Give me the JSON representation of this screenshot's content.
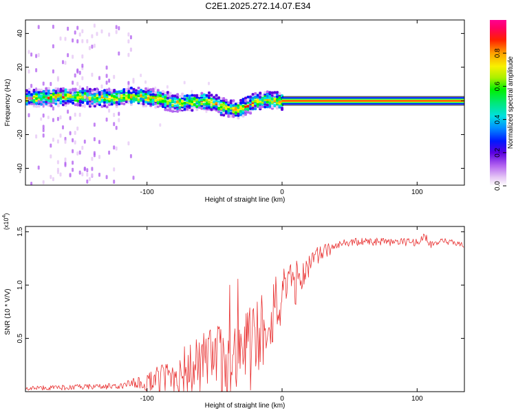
{
  "title": "C2E1.2025.272.14.07.E34",
  "chart_data": [
    {
      "type": "heatmap",
      "xlabel": "Height of straight line (km)",
      "ylabel": "Frequency (Hz)",
      "xlim": [
        -190,
        135
      ],
      "ylim": [
        -50,
        48
      ],
      "xticks": [
        -100,
        0,
        100
      ],
      "xtick_labels": [
        "-100",
        "0",
        "100"
      ],
      "yticks": [
        -40,
        -20,
        0,
        20,
        40
      ],
      "ytick_labels": [
        "-40",
        "-20",
        "0",
        "20",
        "40"
      ],
      "ridge": {
        "x": [
          -190,
          -160,
          -130,
          -110,
          -95,
          -80,
          -65,
          -55,
          -45,
          -35,
          -28,
          -20,
          -10,
          0,
          135
        ],
        "freq": [
          2,
          3,
          2,
          3,
          2,
          -1,
          0,
          0,
          -3,
          -5,
          -3,
          0,
          1,
          0,
          0
        ]
      },
      "constant_line": {
        "freq": 0,
        "from_x": 0,
        "to_x": 135
      }
    },
    {
      "type": "colorbar",
      "label": "Normalized spectral amplitude",
      "range": [
        0,
        1
      ],
      "ticks": [
        0.0,
        0.2,
        0.4,
        0.6,
        0.8
      ],
      "tick_labels": [
        "0.0",
        "0.2",
        "0.4",
        "0.6",
        "0.8"
      ]
    },
    {
      "type": "line",
      "xlabel": "Height of straight line (km)",
      "ylabel": "SNR (10 * V/V)",
      "multiplier_label": "(x10",
      "multiplier_exp": "4",
      "xlim": [
        -190,
        135
      ],
      "ylim": [
        0,
        1.55
      ],
      "xticks": [
        -100,
        0,
        100
      ],
      "xtick_labels": [
        "-100",
        "0",
        "100"
      ],
      "yticks": [
        0.5,
        1.0,
        1.5
      ],
      "ytick_labels": [
        "0.5",
        "1.0",
        "1.5"
      ],
      "series_color": "#e83030",
      "trend": {
        "x": [
          -190,
          -150,
          -120,
          -100,
          -85,
          -70,
          -55,
          -40,
          -30,
          -22,
          -15,
          -8,
          0,
          10,
          20,
          30,
          40,
          50,
          60,
          80,
          100,
          106,
          110,
          120,
          135
        ],
        "y": [
          0.03,
          0.04,
          0.05,
          0.08,
          0.12,
          0.18,
          0.22,
          0.25,
          0.3,
          0.4,
          0.55,
          0.7,
          0.82,
          1.0,
          1.18,
          1.3,
          1.36,
          1.4,
          1.4,
          1.4,
          1.4,
          1.45,
          1.38,
          1.4,
          1.38
        ]
      },
      "noise_amplitude": {
        "x": [
          -190,
          -120,
          -100,
          -80,
          -60,
          -40,
          -25,
          -15,
          0,
          20,
          40,
          135
        ],
        "a": [
          0.02,
          0.03,
          0.08,
          0.2,
          0.3,
          0.4,
          0.45,
          0.4,
          0.3,
          0.12,
          0.04,
          0.035
        ]
      }
    }
  ]
}
